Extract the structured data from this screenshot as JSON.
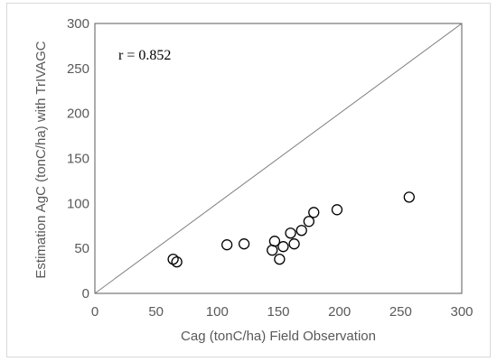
{
  "chart_data": {
    "type": "scatter",
    "title": "",
    "xlabel": "Cag (tonC/ha) Field Observation",
    "ylabel": "Estimation AgC (tonC/ha) with TrIVAGC",
    "xlim": [
      0,
      300
    ],
    "ylim": [
      0,
      300
    ],
    "x_ticks": [
      "0",
      "50",
      "100",
      "150",
      "200",
      "250",
      "300"
    ],
    "y_ticks": [
      "0",
      "50",
      "100",
      "150",
      "200",
      "250",
      "300"
    ],
    "grid": false,
    "legend": "none",
    "annotation": "r = 0.852",
    "reference_line": {
      "from": [
        0,
        0
      ],
      "to": [
        300,
        300
      ],
      "color": "#7f7f7f"
    },
    "marker": {
      "shape": "open-circle",
      "color": "#000000"
    },
    "series": [
      {
        "points": [
          {
            "x": 64,
            "y": 38
          },
          {
            "x": 67,
            "y": 35
          },
          {
            "x": 108,
            "y": 54
          },
          {
            "x": 122,
            "y": 55
          },
          {
            "x": 145,
            "y": 48
          },
          {
            "x": 147,
            "y": 58
          },
          {
            "x": 151,
            "y": 38
          },
          {
            "x": 154,
            "y": 52
          },
          {
            "x": 160,
            "y": 67
          },
          {
            "x": 163,
            "y": 55
          },
          {
            "x": 169,
            "y": 70
          },
          {
            "x": 175,
            "y": 80
          },
          {
            "x": 179,
            "y": 90
          },
          {
            "x": 198,
            "y": 93
          },
          {
            "x": 257,
            "y": 107
          }
        ]
      }
    ]
  }
}
